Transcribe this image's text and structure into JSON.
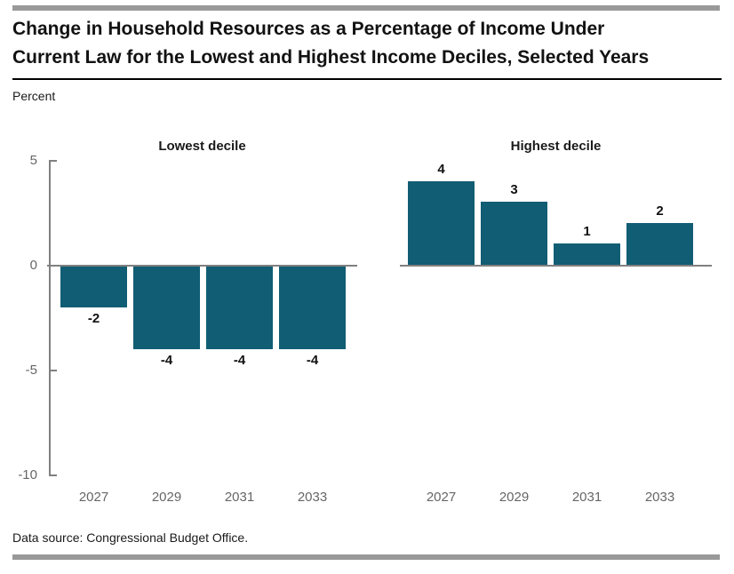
{
  "header": {
    "title_line1": "Change in Household Resources as a Percentage of Income Under",
    "title_line2": "Current Law for the Lowest and Highest Income Deciles, Selected Years",
    "unit_label": "Percent"
  },
  "footer": {
    "source": "Data source: Congressional Budget Office."
  },
  "chart_data": {
    "type": "bar",
    "title": "Change in Household Resources as a Percentage of Income Under Current Law for the Lowest and Highest Income Deciles, Selected Years",
    "ylabel": "Percent",
    "categories": [
      "2027",
      "2029",
      "2031",
      "2033"
    ],
    "panels": [
      {
        "title": "Lowest decile",
        "values": [
          -2,
          -4,
          -4,
          -4
        ]
      },
      {
        "title": "Highest decile",
        "values": [
          4,
          3,
          1,
          2
        ]
      }
    ],
    "yticks": [
      5,
      0,
      -5,
      -10
    ],
    "ylim": [
      -10,
      5
    ],
    "bar_color": "#115d74",
    "grid": false,
    "value_labels": true,
    "legend": "none"
  }
}
